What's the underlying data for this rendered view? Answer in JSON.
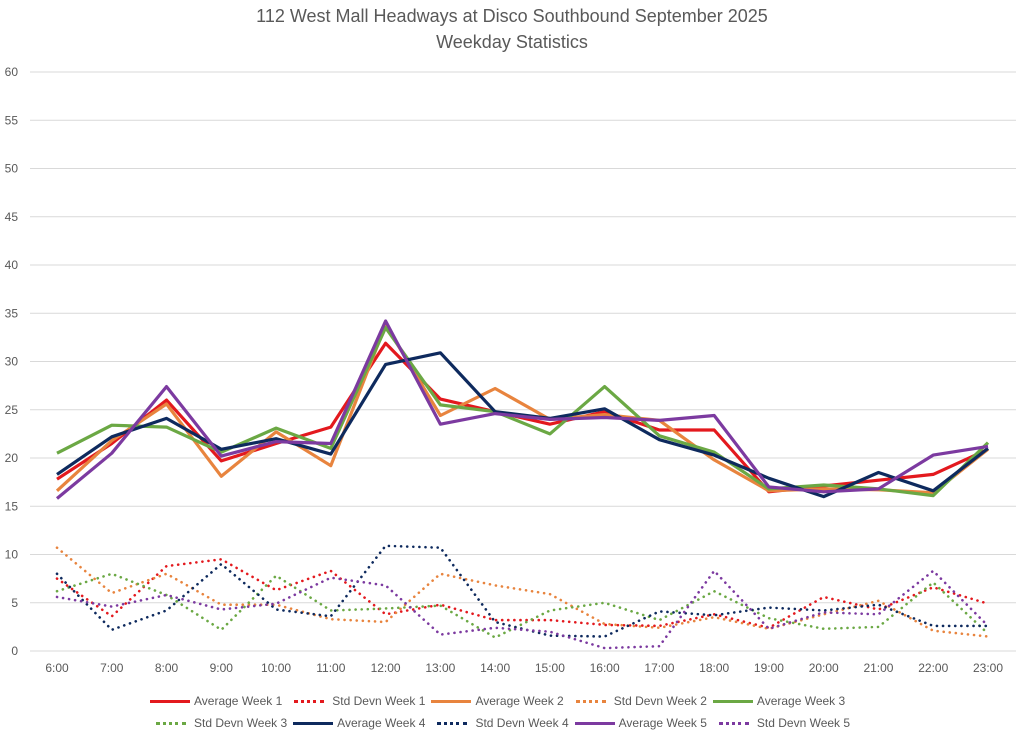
{
  "chart_data": {
    "type": "line",
    "title": "112 West Mall Headways at Disco Southbound September 2025",
    "subtitle": "Weekday Statistics",
    "xlabel": "",
    "ylabel": "",
    "ylim": [
      0,
      60
    ],
    "yticks": [
      0,
      5,
      10,
      15,
      20,
      25,
      30,
      35,
      40,
      45,
      50,
      55,
      60
    ],
    "grid": true,
    "legend_position": "bottom",
    "x": [
      "6:00",
      "7:00",
      "8:00",
      "9:00",
      "10:00",
      "11:00",
      "12:00",
      "13:00",
      "14:00",
      "15:00",
      "16:00",
      "17:00",
      "18:00",
      "19:00",
      "20:00",
      "21:00",
      "22:00",
      "23:00"
    ],
    "series": [
      {
        "name": "Average Week 1",
        "style": "solid",
        "color": "#E3191E",
        "values": [
          17.8,
          21.5,
          26.0,
          19.7,
          21.5,
          23.2,
          31.9,
          26.1,
          24.8,
          23.5,
          24.8,
          22.9,
          22.9,
          16.5,
          17.1,
          17.7,
          18.3,
          20.9
        ]
      },
      {
        "name": "Std Devn Week 1",
        "style": "dotted",
        "color": "#E3191E",
        "values": [
          7.5,
          3.6,
          8.8,
          9.5,
          6.3,
          8.3,
          3.8,
          4.8,
          3.2,
          3.2,
          2.7,
          2.6,
          3.8,
          2.4,
          5.6,
          4.3,
          6.6,
          4.9
        ]
      },
      {
        "name": "Average Week 2",
        "style": "solid",
        "color": "#E8843E",
        "values": [
          16.6,
          21.8,
          25.6,
          18.1,
          22.7,
          19.2,
          33.8,
          24.4,
          27.2,
          24.0,
          24.5,
          23.9,
          19.8,
          16.6,
          16.8,
          16.7,
          16.4,
          20.9
        ]
      },
      {
        "name": "Std Devn Week 2",
        "style": "dotted",
        "color": "#E8843E",
        "values": [
          10.7,
          6.0,
          8.0,
          4.8,
          4.8,
          3.3,
          3.0,
          8.0,
          6.8,
          5.9,
          2.8,
          2.4,
          3.5,
          2.3,
          3.8,
          5.2,
          2.1,
          1.5
        ]
      },
      {
        "name": "Average Week 3",
        "style": "solid",
        "color": "#6BA844",
        "values": [
          20.5,
          23.4,
          23.2,
          20.6,
          23.1,
          21.0,
          33.5,
          25.5,
          24.8,
          22.5,
          27.4,
          22.3,
          20.6,
          16.8,
          17.2,
          16.8,
          16.1,
          21.6
        ]
      },
      {
        "name": "Std Devn Week 3",
        "style": "dotted",
        "color": "#6BA844",
        "values": [
          6.2,
          8.0,
          5.8,
          2.2,
          7.8,
          4.2,
          4.4,
          4.7,
          1.4,
          4.2,
          5.0,
          3.2,
          6.2,
          3.4,
          2.3,
          2.5,
          7.1,
          1.8
        ]
      },
      {
        "name": "Average Week 4",
        "style": "solid",
        "color": "#0E2A5E",
        "values": [
          18.3,
          22.2,
          24.1,
          20.9,
          22.0,
          20.4,
          29.7,
          30.9,
          24.8,
          24.1,
          25.1,
          21.9,
          20.3,
          17.9,
          16.0,
          18.5,
          16.6,
          21.0
        ]
      },
      {
        "name": "Std Devn Week 4",
        "style": "dotted",
        "color": "#0E2A5E",
        "values": [
          8.0,
          2.2,
          4.2,
          9.0,
          4.3,
          3.6,
          10.9,
          10.7,
          3.0,
          1.6,
          1.5,
          4.1,
          3.7,
          4.5,
          4.2,
          4.8,
          2.6,
          2.6
        ]
      },
      {
        "name": "Average Week 5",
        "style": "solid",
        "color": "#7C3AA0",
        "values": [
          15.8,
          20.5,
          27.4,
          20.2,
          21.7,
          21.5,
          34.2,
          23.5,
          24.6,
          24.0,
          24.2,
          23.9,
          24.4,
          17.0,
          16.5,
          16.8,
          20.3,
          21.2
        ]
      },
      {
        "name": "Std Devn Week 5",
        "style": "dotted",
        "color": "#7C3AA0",
        "values": [
          5.6,
          4.6,
          5.8,
          4.3,
          4.9,
          7.6,
          6.8,
          1.7,
          2.4,
          2.0,
          0.3,
          0.5,
          8.3,
          2.3,
          4.0,
          3.8,
          8.3,
          2.6
        ]
      }
    ]
  }
}
